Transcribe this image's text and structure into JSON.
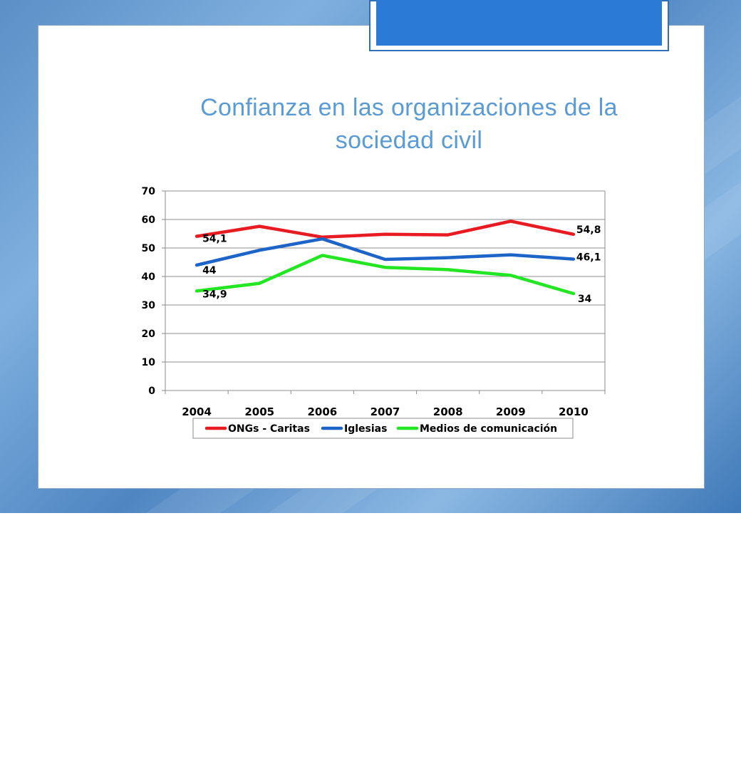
{
  "slide": {
    "title_line1": "Confianza en las organizaciones de la",
    "title_line2": "sociedad civil"
  },
  "colors": {
    "title": "#5b9bd5",
    "accent": "#2b7bd6",
    "series": [
      "#e81b23",
      "#1c64c8",
      "#22e622"
    ]
  },
  "chart_data": {
    "type": "line",
    "title": "",
    "xlabel": "",
    "ylabel": "",
    "ylim": [
      0,
      70
    ],
    "yticks": [
      "0",
      "10",
      "20",
      "30",
      "40",
      "50",
      "60",
      "70"
    ],
    "categories": [
      "2004",
      "2005",
      "2006",
      "2007",
      "2008",
      "2009",
      "2010"
    ],
    "grid": true,
    "legend_position": "bottom",
    "series": [
      {
        "name": "ONGs - Caritas",
        "values": [
          54.1,
          57.6,
          53.8,
          54.8,
          54.6,
          59.4,
          54.8
        ],
        "labels": [
          "54,1",
          "",
          "",
          "",
          "",
          "",
          "54,8"
        ]
      },
      {
        "name": "Iglesias",
        "values": [
          44,
          49.2,
          53.2,
          46,
          46.6,
          47.6,
          46.1
        ],
        "labels": [
          "44",
          "",
          "",
          "",
          "",
          "",
          "46,1"
        ]
      },
      {
        "name": "Medios de comunicación",
        "values": [
          34.9,
          37.6,
          47.4,
          43.2,
          42.4,
          40.4,
          34
        ],
        "labels": [
          "34,9",
          "",
          "",
          "",
          "",
          "",
          "34"
        ]
      }
    ]
  }
}
